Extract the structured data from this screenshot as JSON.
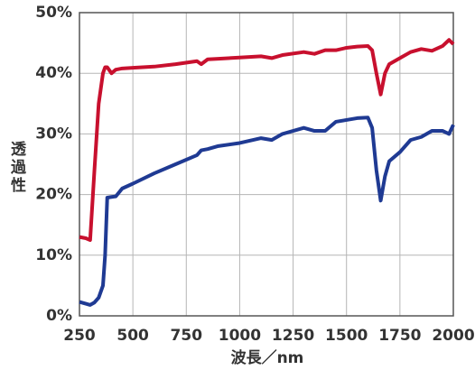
{
  "chart_data": {
    "type": "line",
    "x_label": "波長／nm",
    "y_label": "透過性",
    "x": [
      250,
      280,
      300,
      320,
      340,
      360,
      370,
      380,
      400,
      420,
      450,
      500,
      600,
      700,
      800,
      820,
      850,
      900,
      1000,
      1100,
      1150,
      1200,
      1300,
      1350,
      1400,
      1450,
      1500,
      1550,
      1600,
      1620,
      1640,
      1660,
      1680,
      1700,
      1750,
      1800,
      1850,
      1900,
      1950,
      1980,
      2000
    ],
    "series": [
      {
        "color": "#c8102e",
        "values": [
          13,
          12.8,
          12.5,
          24,
          35,
          40,
          41,
          41,
          40,
          40.6,
          40.8,
          40.9,
          41.1,
          41.5,
          42,
          41.5,
          42.3,
          42.4,
          42.6,
          42.8,
          42.5,
          43,
          43.5,
          43.2,
          43.8,
          43.8,
          44.2,
          44.4,
          44.5,
          43.8,
          40,
          36.5,
          40,
          41.5,
          42.5,
          43.5,
          44,
          43.7,
          44.5,
          45.5,
          44.8
        ]
      },
      {
        "color": "#1f3a93",
        "values": [
          2.3,
          2,
          1.8,
          2.2,
          3,
          5,
          10,
          19.5,
          19.6,
          19.7,
          21,
          21.8,
          23.5,
          25,
          26.5,
          27.3,
          27.5,
          28,
          28.5,
          29.3,
          29,
          30,
          31,
          30.5,
          30.5,
          32,
          32.3,
          32.6,
          32.7,
          31,
          24,
          19,
          23,
          25.5,
          27,
          29,
          29.5,
          30.5,
          30.5,
          30,
          31.5
        ]
      }
    ],
    "xlim": [
      250,
      2000
    ],
    "xticks": [
      250,
      500,
      750,
      1000,
      1250,
      1500,
      1750,
      2000
    ],
    "ylim": [
      0,
      50
    ],
    "yticks": [
      {
        "value": 0,
        "label": "0%"
      },
      {
        "value": 10,
        "label": "10%"
      },
      {
        "value": 20,
        "label": "20%"
      },
      {
        "value": 30,
        "label": "30%"
      },
      {
        "value": 40,
        "label": "40%"
      },
      {
        "value": 50,
        "label": "50%"
      }
    ],
    "grid": true
  }
}
